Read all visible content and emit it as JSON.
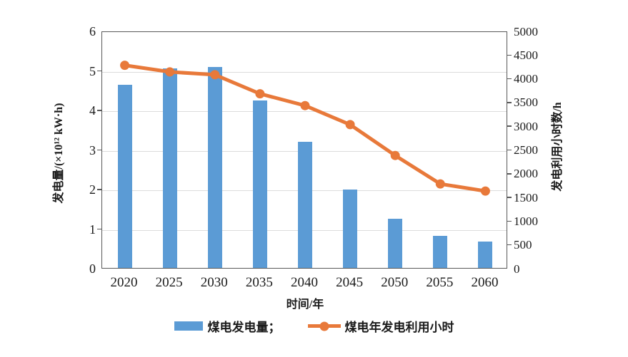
{
  "chart_data": {
    "type": "combo",
    "title": "",
    "categories": [
      "2020",
      "2025",
      "2030",
      "2035",
      "2040",
      "2045",
      "2050",
      "2055",
      "2060"
    ],
    "series": [
      {
        "name": "煤电发电量",
        "type": "bar",
        "axis": "left",
        "legend_label": "煤电发电量；",
        "values": [
          4.63,
          5.05,
          5.08,
          4.23,
          3.19,
          1.98,
          1.25,
          0.82,
          0.66
        ]
      },
      {
        "name": "煤电年发电利用小时",
        "type": "line",
        "axis": "right",
        "legend_label": "煤电年发电利用小时",
        "values": [
          4300,
          4160,
          4100,
          3700,
          3450,
          3050,
          2400,
          1800,
          1650
        ]
      }
    ],
    "xlabel": "时间/年",
    "ylabel_left": "发电量/(×10¹² kW·h)",
    "ylabel_right": "发电利用小时数/h",
    "ylim_left": [
      0,
      6
    ],
    "ylim_right": [
      0,
      5000
    ],
    "yticks_left": [
      0,
      1,
      2,
      3,
      4,
      5,
      6
    ],
    "yticks_right": [
      0,
      500,
      1000,
      1500,
      2000,
      2500,
      3000,
      3500,
      4000,
      4500,
      5000
    ],
    "grid": true,
    "legend_position": "bottom",
    "colors": {
      "bar": "#5B9BD5",
      "line": "#E8793A",
      "axis": "#595959",
      "grid": "#dcdcdc",
      "text": "#1a1a1a"
    }
  }
}
